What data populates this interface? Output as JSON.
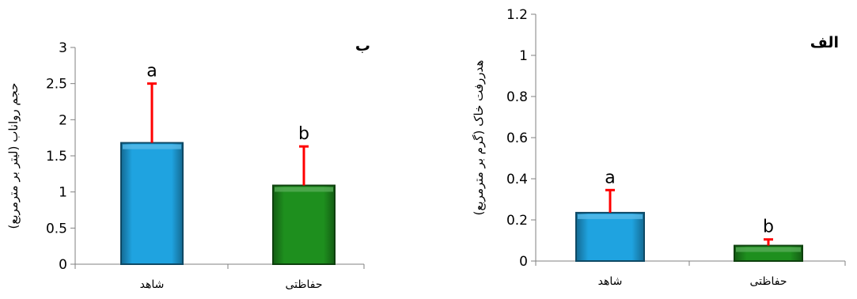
{
  "chart_data": [
    {
      "type": "bar",
      "panel_label": "ب",
      "ylabel": "حجم رواناب (لیتر بر مترمربع)",
      "categories": [
        "شاهد",
        "حفاظتی"
      ],
      "values": [
        1.68,
        1.09
      ],
      "error_upper": [
        2.5,
        1.63
      ],
      "significance": [
        "a",
        "b"
      ],
      "ylim": [
        0,
        3
      ],
      "yticks": [
        "0",
        "0.5",
        "1",
        "1.5",
        "2",
        "2.5",
        "3"
      ],
      "colors": [
        "#1FA3E0",
        "#1E8F1E"
      ],
      "error_color": "#FF0000"
    },
    {
      "type": "bar",
      "panel_label": "الف",
      "ylabel": "هدررفت خاک (گرم بر مترمربع)",
      "categories": [
        "شاهد",
        "حفاظتی"
      ],
      "values": [
        0.235,
        0.075
      ],
      "error_upper": [
        0.345,
        0.105
      ],
      "significance": [
        "a",
        "b"
      ],
      "ylim": [
        0,
        1.2
      ],
      "yticks": [
        "0",
        "0.2",
        "0.4",
        "0.6",
        "0.8",
        "1",
        "1.2"
      ],
      "colors": [
        "#1FA3E0",
        "#1E8F1E"
      ],
      "error_color": "#FF0000"
    }
  ]
}
